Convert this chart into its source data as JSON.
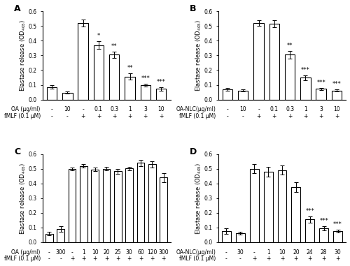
{
  "panels": [
    {
      "label": "A",
      "row": 0,
      "col": 0,
      "xlabel_row1": [
        "-",
        "10",
        "-",
        "0.1",
        "0.3",
        "1",
        "3",
        "10"
      ],
      "xlabel_row2": [
        "-",
        "-",
        "+",
        "+",
        "+",
        "+",
        "+",
        "+"
      ],
      "xlabel_label1": "OA (μg/ml)",
      "xlabel_label2": "fMLF (0.1 μM)",
      "values": [
        0.085,
        0.048,
        0.52,
        0.37,
        0.305,
        0.157,
        0.098,
        0.072
      ],
      "errors": [
        0.012,
        0.007,
        0.025,
        0.025,
        0.02,
        0.022,
        0.01,
        0.01
      ],
      "stars": [
        "",
        "",
        "",
        "*",
        "**",
        "**",
        "***",
        "***"
      ]
    },
    {
      "label": "B",
      "row": 0,
      "col": 1,
      "xlabel_row1": [
        "-",
        "10",
        "-",
        "0.1",
        "0.3",
        "1",
        "3",
        "10"
      ],
      "xlabel_row2": [
        "-",
        "-",
        "+",
        "+",
        "+",
        "+",
        "+",
        "+"
      ],
      "xlabel_label1": "OA-NLC(μg/ml)",
      "xlabel_label2": "fMLF (0.1 μM)",
      "values": [
        0.068,
        0.062,
        0.52,
        0.515,
        0.305,
        0.148,
        0.072,
        0.062
      ],
      "errors": [
        0.01,
        0.008,
        0.018,
        0.022,
        0.025,
        0.015,
        0.008,
        0.007
      ],
      "stars": [
        "",
        "",
        "",
        "",
        "**",
        "***",
        "***",
        "***"
      ]
    },
    {
      "label": "C",
      "row": 1,
      "col": 0,
      "xlabel_row1": [
        "-",
        "300",
        "-",
        "1",
        "10",
        "20",
        "25",
        "30",
        "60",
        "120",
        "300"
      ],
      "xlabel_row2": [
        "-",
        "-",
        "+",
        "+",
        "+",
        "+",
        "+",
        "+",
        "+",
        "+",
        "+"
      ],
      "xlabel_label1": "OA (μg/ml)",
      "xlabel_label2": "fMLF (0.1 μM)",
      "values": [
        0.058,
        0.09,
        0.498,
        0.518,
        0.495,
        0.5,
        0.482,
        0.503,
        0.54,
        0.53,
        0.44
      ],
      "errors": [
        0.012,
        0.02,
        0.01,
        0.012,
        0.012,
        0.012,
        0.015,
        0.012,
        0.022,
        0.02,
        0.03
      ],
      "stars": [
        "",
        "",
        "",
        "",
        "",
        "",
        "",
        "",
        "",
        "",
        ""
      ]
    },
    {
      "label": "D",
      "row": 1,
      "col": 1,
      "xlabel_row1": [
        "-",
        "30",
        "-",
        "1",
        "10",
        "20",
        "24",
        "28",
        "30"
      ],
      "xlabel_row2": [
        "-",
        "-",
        "+",
        "+",
        "+",
        "+",
        "+",
        "+",
        "+"
      ],
      "xlabel_label1": "OA-NLC(μg/ml)",
      "xlabel_label2": "fMLF (0.1 μM)",
      "values": [
        0.075,
        0.062,
        0.5,
        0.48,
        0.49,
        0.375,
        0.155,
        0.095,
        0.075
      ],
      "errors": [
        0.018,
        0.01,
        0.03,
        0.032,
        0.03,
        0.035,
        0.02,
        0.012,
        0.01
      ],
      "stars": [
        "",
        "",
        "",
        "",
        "",
        "",
        "***",
        "***",
        "***"
      ]
    }
  ],
  "ylim": [
    0,
    0.6
  ],
  "yticks": [
    0.0,
    0.1,
    0.2,
    0.3,
    0.4,
    0.5,
    0.6
  ],
  "bar_color": "#ffffff",
  "bar_edgecolor": "#000000",
  "bar_linewidth": 0.8,
  "ecolor": "#000000",
  "capsize": 2,
  "label_fontsize": 5.5,
  "tick_fontsize": 5.5,
  "star_fontsize": 6,
  "ylabel_fontsize": 6,
  "panel_label_fontsize": 9
}
